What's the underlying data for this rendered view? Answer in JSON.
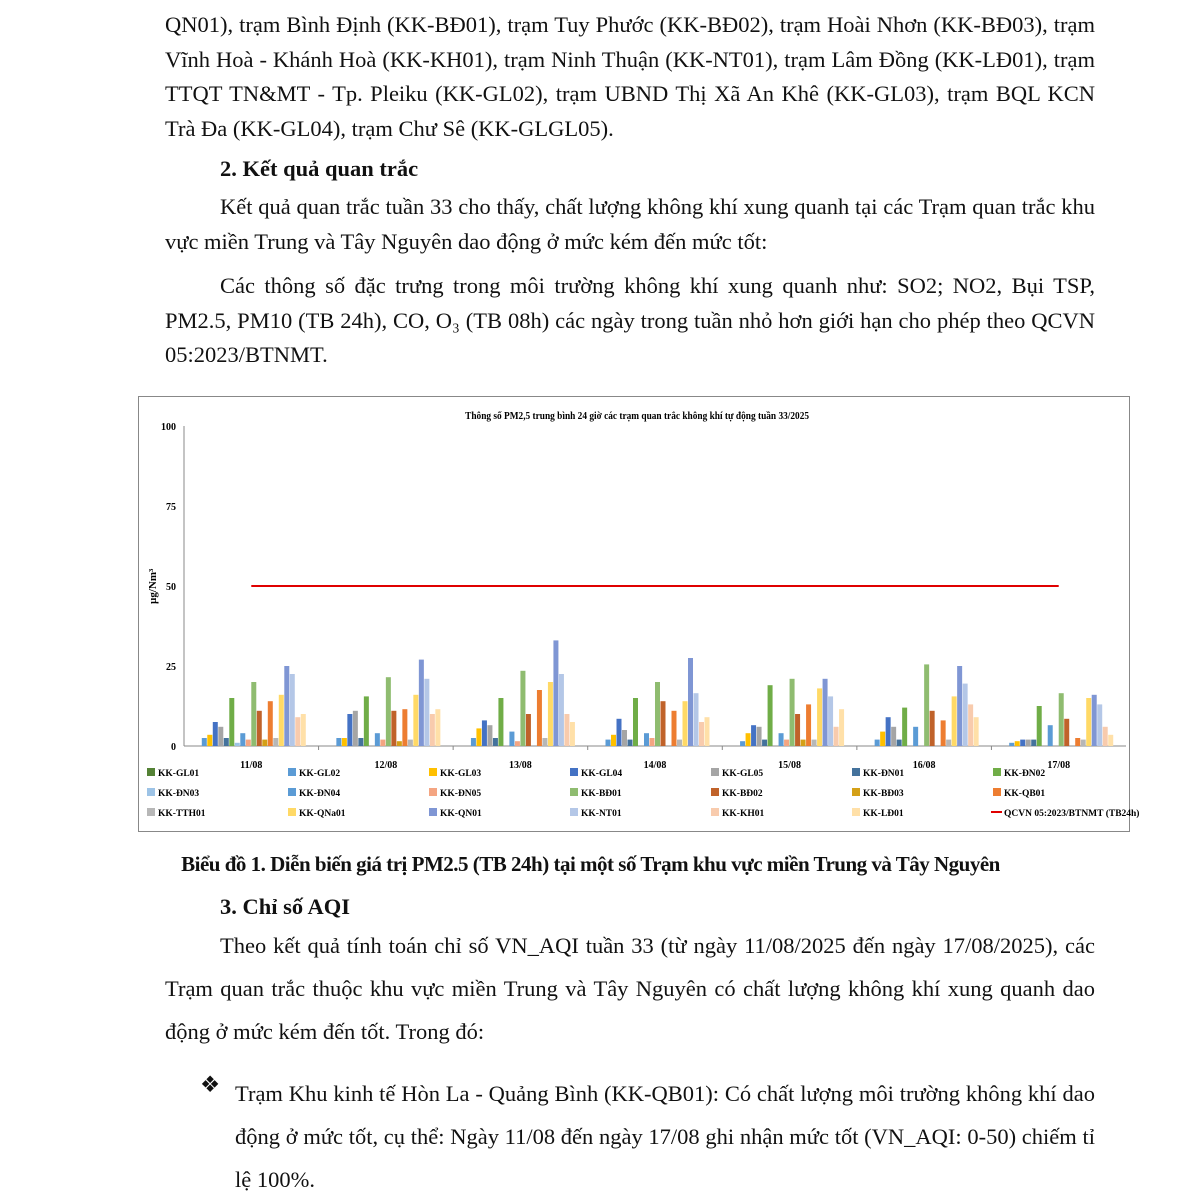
{
  "para1": "QN01), trạm Bình Định (KK-BĐ01), trạm Tuy Phước (KK-BĐ02), trạm Hoài Nhơn (KK-BĐ03), trạm Vĩnh Hoà - Khánh Hoà (KK-KH01), trạm Ninh Thuận (KK-NT01), trạm Lâm Đồng (KK-LĐ01), trạm TTQT TN&MT - Tp. Pleiku (KK-GL02), trạm UBND Thị Xã An Khê (KK-GL03), trạm BQL KCN Trà Đa (KK-GL04), trạm Chư Sê (KK-GLGL05).",
  "heading2": "2. Kết quả quan trắc",
  "para2": "Kết quả quan trắc tuần 33 cho thấy, chất lượng không khí xung quanh tại các Trạm quan trắc khu vực miền Trung và Tây Nguyên dao động ở mức kém đến mức tốt:",
  "para3": "Các thông số đặc trưng trong môi trường không khí xung quanh như: SO2; NO2, Bụi TSP, PM2.5, PM10 (TB 24h), CO, O₃ (TB 08h) các ngày trong tuần nhỏ hơn giới hạn cho phép theo QCVN 05:2023/BTNMT.",
  "caption": "Biểu đồ 1. Diễn biến giá trị PM2.5 (TB 24h) tại một số Trạm khu vực miền Trung và Tây Nguyên",
  "heading3": "3. Chỉ số AQI",
  "para4": "Theo kết quả tính toán chỉ số VN_AQI tuần 33 (từ ngày 11/08/2025 đến ngày 17/08/2025), các Trạm quan trắc thuộc khu vực miền Trung và Tây Nguyên có chất lượng không khí xung quanh dao động ở mức kém đến tốt. Trong đó:",
  "bullet_icon": "diamond-bullet",
  "bullet1": "Trạm Khu kinh tế Hòn La - Quảng Bình (KK-QB01): Có chất lượng môi trường không khí dao động ở mức tốt, cụ thể: Ngày 11/08 đến ngày 17/08 ghi nhận mức tốt (VN_AQI: 0-50) chiếm tỉ lệ 100%.",
  "chart_data": {
    "type": "bar",
    "title": "Thông số PM2,5 trung bình 24 giờ các trạm quan trắc không khí tự động tuần 33/2025",
    "ylabel": "µg/Nm³",
    "ylim": [
      0,
      100
    ],
    "yticks": [
      0,
      25,
      50,
      75,
      100
    ],
    "grid": false,
    "legend_position": "bottom",
    "categories": [
      "11/08",
      "12/08",
      "13/08",
      "14/08",
      "15/08",
      "16/08",
      "17/08"
    ],
    "series": [
      {
        "name": "KK-GL01",
        "color": "#548235",
        "values": [
          0,
          0,
          0,
          0,
          0,
          0,
          0
        ]
      },
      {
        "name": "KK-GL02",
        "color": "#5b9bd5",
        "values": [
          2.5,
          2.5,
          2.5,
          2,
          1.5,
          2,
          1
        ]
      },
      {
        "name": "KK-GL03",
        "color": "#ffc000",
        "values": [
          3.5,
          2.5,
          5.5,
          3.5,
          4,
          4.5,
          1.5
        ]
      },
      {
        "name": "KK-GL04",
        "color": "#4472c4",
        "values": [
          7.5,
          10,
          8,
          8.5,
          6.5,
          9,
          2
        ]
      },
      {
        "name": "KK-GL05",
        "color": "#a5a5a5",
        "values": [
          6,
          11,
          6.5,
          5,
          6,
          6,
          2
        ]
      },
      {
        "name": "KK-ĐN01",
        "color": "#44729c",
        "values": [
          2.5,
          2.5,
          2.5,
          2,
          2,
          2,
          2
        ]
      },
      {
        "name": "KK-ĐN02",
        "color": "#70ad47",
        "values": [
          15,
          15.5,
          15,
          15,
          19,
          12,
          12.5
        ]
      },
      {
        "name": "KK-ĐN03",
        "color": "#9dc3e6",
        "values": [
          1,
          0,
          0,
          0,
          0,
          0,
          0
        ]
      },
      {
        "name": "KK-ĐN04",
        "color": "#5b9bd5",
        "values": [
          4,
          4,
          4.5,
          4,
          4,
          6,
          6.5
        ]
      },
      {
        "name": "KK-ĐN05",
        "color": "#f4a582",
        "values": [
          2,
          2,
          1.5,
          2.5,
          2,
          0,
          0
        ]
      },
      {
        "name": "KK-BĐ01",
        "color": "#8fbc70",
        "values": [
          20,
          21.5,
          23.5,
          20,
          21,
          25.5,
          16.5
        ]
      },
      {
        "name": "KK-BĐ02",
        "color": "#c0622a",
        "values": [
          11,
          11,
          10,
          14,
          10,
          11,
          8.5
        ]
      },
      {
        "name": "KK-BĐ03",
        "color": "#d4a017",
        "values": [
          2,
          1.5,
          0,
          0,
          2,
          0,
          0
        ]
      },
      {
        "name": "KK-QB01",
        "color": "#ed7d31",
        "values": [
          14,
          11.5,
          17.5,
          11,
          13,
          8,
          2.5
        ]
      },
      {
        "name": "KK-TTH01",
        "color": "#b7b7b7",
        "values": [
          2.5,
          2,
          2.5,
          2,
          2,
          2,
          2
        ]
      },
      {
        "name": "KK-QNa01",
        "color": "#ffd966",
        "values": [
          16,
          16,
          20,
          14,
          18,
          15.5,
          15
        ]
      },
      {
        "name": "KK-QN01",
        "color": "#7f96d4",
        "values": [
          25,
          27,
          33,
          27.5,
          21,
          25,
          16
        ]
      },
      {
        "name": "KK-NT01",
        "color": "#b4c7e7",
        "values": [
          22.5,
          21,
          22.5,
          16.5,
          15.5,
          19.5,
          13
        ]
      },
      {
        "name": "KK-KH01",
        "color": "#f8cbad",
        "values": [
          9,
          10,
          10,
          7.5,
          6,
          13,
          6
        ]
      },
      {
        "name": "KK-LĐ01",
        "color": "#ffe0a8",
        "values": [
          10,
          11.5,
          7.5,
          9,
          11.5,
          9,
          3.5
        ]
      }
    ],
    "limit": {
      "name": "QCVN 05:2023/BTNMT (TB24h)",
      "value": 50,
      "color": "#e00000"
    }
  }
}
